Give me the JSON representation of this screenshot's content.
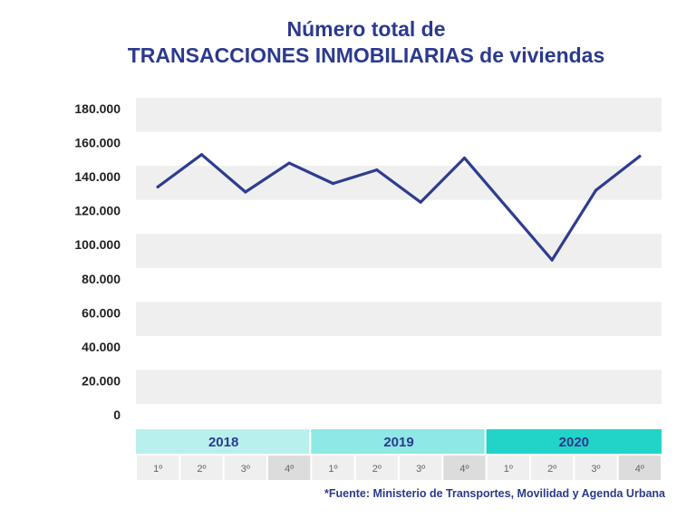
{
  "title_line1": "Número total de",
  "title_line2": "TRANSACCIONES INMOBILIARIAS de viviendas",
  "source": "*Fuente: Ministerio de Transportes, Movilidad y Agenda Urbana",
  "colors": {
    "title": "#2b3a8f",
    "line": "#2e3d8f",
    "band": "#efefef",
    "year_2018": "#b8f0ee",
    "year_2019": "#8ee8e4",
    "year_2020": "#22d3c8",
    "quarter_light": "#efefef",
    "quarter_dark": "#dcdcdc"
  },
  "chart_data": {
    "type": "line",
    "ylim": [
      0,
      180000
    ],
    "yticks": [
      "0",
      "20.000",
      "40.000",
      "60.000",
      "80.000",
      "100.000",
      "120.000",
      "140.000",
      "160.000",
      "180.000"
    ],
    "years": [
      {
        "label": "2018",
        "quarters": 4
      },
      {
        "label": "2019",
        "quarters": 4
      },
      {
        "label": "2020",
        "quarters": 4
      }
    ],
    "categories": [
      "1º",
      "2º",
      "3º",
      "4º",
      "1º",
      "2º",
      "3º",
      "4º",
      "1º",
      "2º",
      "3º",
      "4º"
    ],
    "values": [
      134000,
      153000,
      131000,
      148000,
      136000,
      144000,
      125000,
      151000,
      121000,
      91000,
      132000,
      152000
    ]
  }
}
